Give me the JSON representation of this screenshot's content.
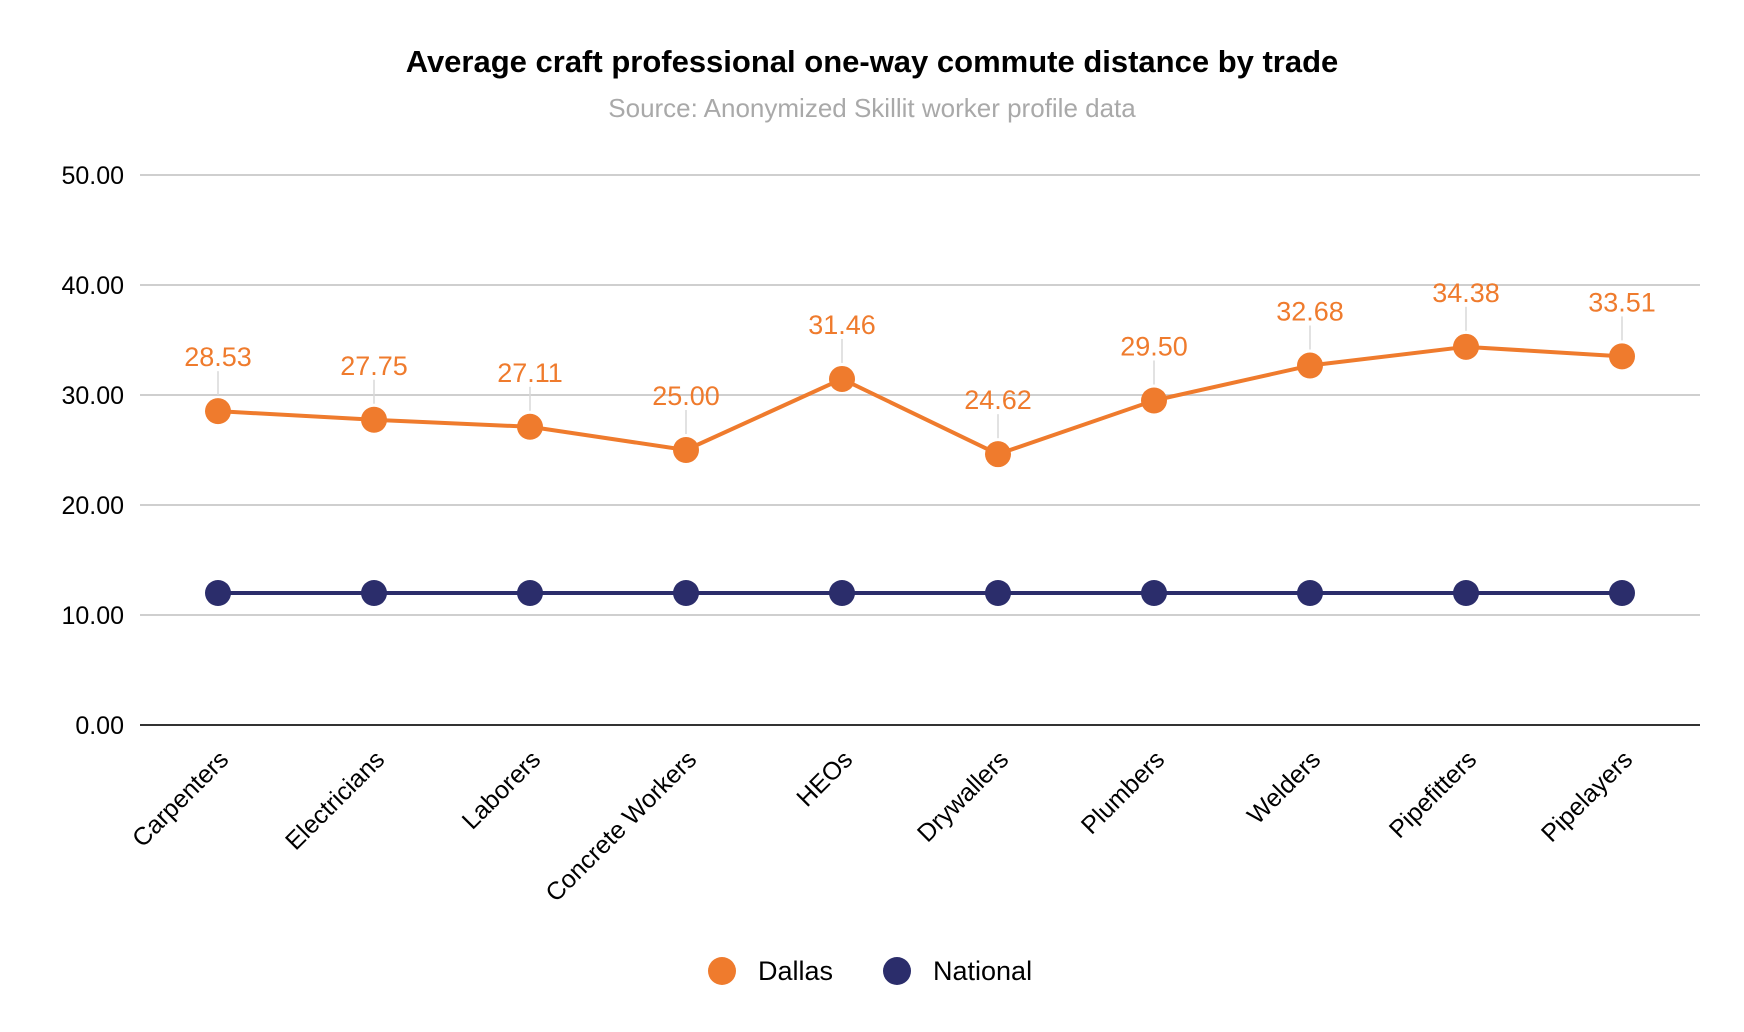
{
  "chart_data": {
    "type": "line",
    "title": "Average craft professional one-way commute distance by trade",
    "subtitle": "Source: Anonymized Skillit worker profile data",
    "categories": [
      "Carpenters",
      "Electricians",
      "Laborers",
      "Concrete Workers",
      "HEOs",
      "Drywallers",
      "Plumbers",
      "Welders",
      "Pipefitters",
      "Pipelayers"
    ],
    "y_ticks": [
      "0.00",
      "10.00",
      "20.00",
      "30.00",
      "40.00",
      "50.00"
    ],
    "ylim": [
      0,
      50
    ],
    "grid": true,
    "legend_position": "bottom",
    "series": [
      {
        "name": "Dallas",
        "color": "#ef7b2d",
        "values": [
          28.53,
          27.75,
          27.11,
          25.0,
          31.46,
          24.62,
          29.5,
          32.68,
          34.38,
          33.51
        ],
        "data_labels": [
          "28.53",
          "27.75",
          "27.11",
          "25.00",
          "31.46",
          "24.62",
          "29.50",
          "32.68",
          "34.38",
          "33.51"
        ]
      },
      {
        "name": "National",
        "color": "#2b2d6b",
        "values": [
          12,
          12,
          12,
          12,
          12,
          12,
          12,
          12,
          12,
          12
        ]
      }
    ]
  }
}
